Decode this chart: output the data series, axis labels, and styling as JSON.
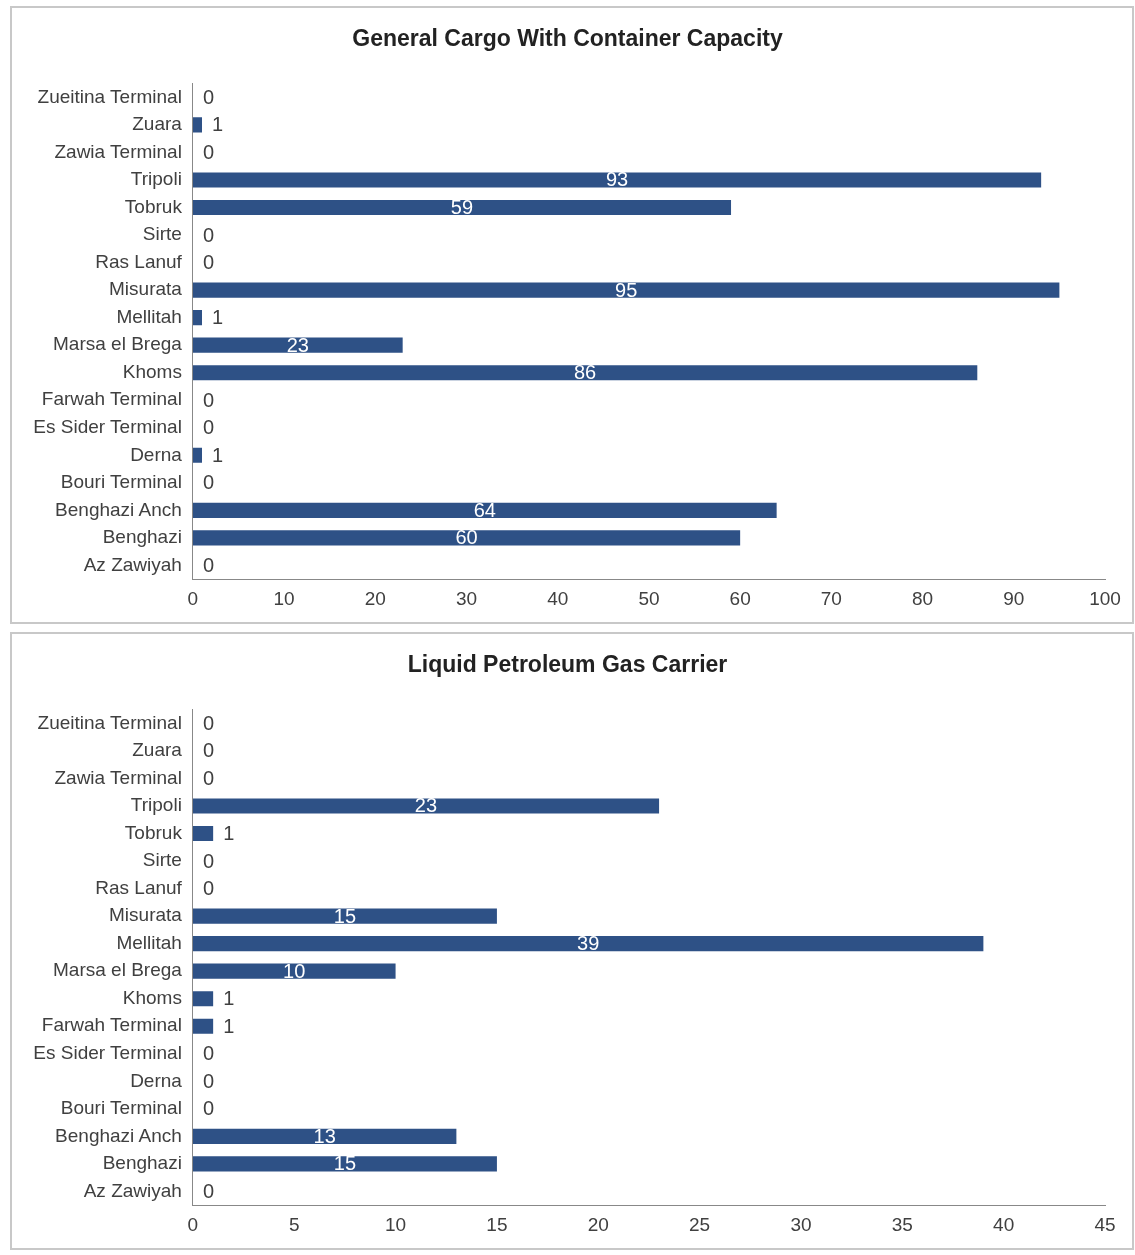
{
  "chart_data": [
    {
      "type": "bar",
      "title": "General Cargo With Container Capacity",
      "orientation": "horizontal",
      "categories": [
        "Zueitina Terminal",
        "Zuara",
        "Zawia Terminal",
        "Tripoli",
        "Tobruk",
        "Sirte",
        "Ras Lanuf",
        "Misurata",
        "Mellitah",
        "Marsa el Brega",
        "Khoms",
        "Farwah Terminal",
        "Es Sider Terminal",
        "Derna",
        "Bouri Terminal",
        "Benghazi Anch",
        "Benghazi",
        "Az Zawiyah"
      ],
      "values": [
        0,
        1,
        0,
        93,
        59,
        0,
        0,
        95,
        1,
        23,
        86,
        0,
        0,
        1,
        0,
        64,
        60,
        0
      ],
      "color": "#2e5186",
      "xlim": [
        0,
        100
      ],
      "xticks": [
        0,
        10,
        20,
        30,
        40,
        50,
        60,
        70,
        80,
        90,
        100
      ],
      "grid": false,
      "legend": false,
      "data_labels": true
    },
    {
      "type": "bar",
      "title": "Liquid Petroleum Gas Carrier",
      "orientation": "horizontal",
      "categories": [
        "Zueitina Terminal",
        "Zuara",
        "Zawia Terminal",
        "Tripoli",
        "Tobruk",
        "Sirte",
        "Ras Lanuf",
        "Misurata",
        "Mellitah",
        "Marsa el Brega",
        "Khoms",
        "Farwah Terminal",
        "Es Sider Terminal",
        "Derna",
        "Bouri Terminal",
        "Benghazi Anch",
        "Benghazi",
        "Az Zawiyah"
      ],
      "values": [
        0,
        0,
        0,
        23,
        1,
        0,
        0,
        15,
        39,
        10,
        1,
        1,
        0,
        0,
        0,
        13,
        15,
        0
      ],
      "color": "#2e5186",
      "xlim": [
        0,
        45
      ],
      "xticks": [
        0,
        5,
        10,
        15,
        20,
        25,
        30,
        35,
        40,
        45
      ],
      "grid": false,
      "legend": false,
      "data_labels": true
    }
  ]
}
